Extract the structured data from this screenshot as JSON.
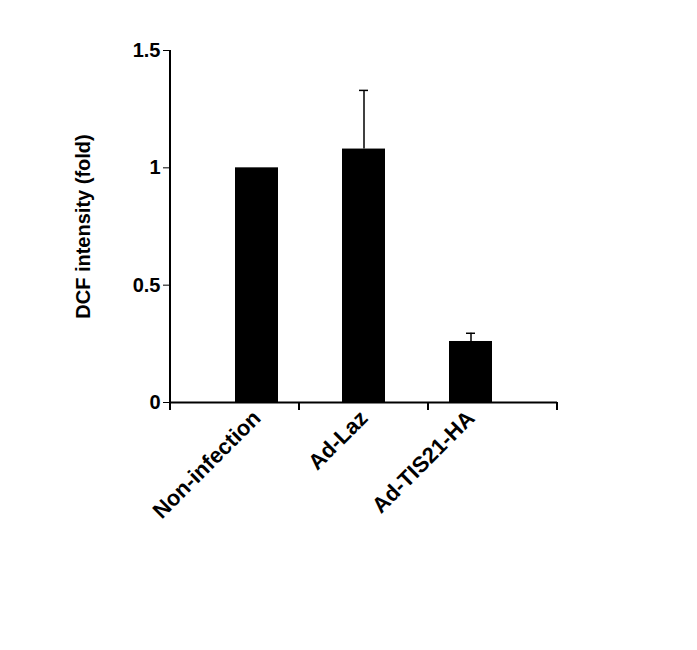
{
  "chart_data": {
    "type": "bar",
    "y_label": "DCF intensity (fold)",
    "categories": [
      "Non-infection",
      "Ad-Laz",
      "Ad-TIS21-HA"
    ],
    "values": [
      1.0,
      1.08,
      0.26
    ],
    "errors": [
      null,
      0.25,
      0.035
    ],
    "color": "#000000",
    "ylim": [
      0,
      1.5
    ],
    "yticks": [
      0,
      0.5,
      1,
      1.5
    ],
    "grid": false
  }
}
